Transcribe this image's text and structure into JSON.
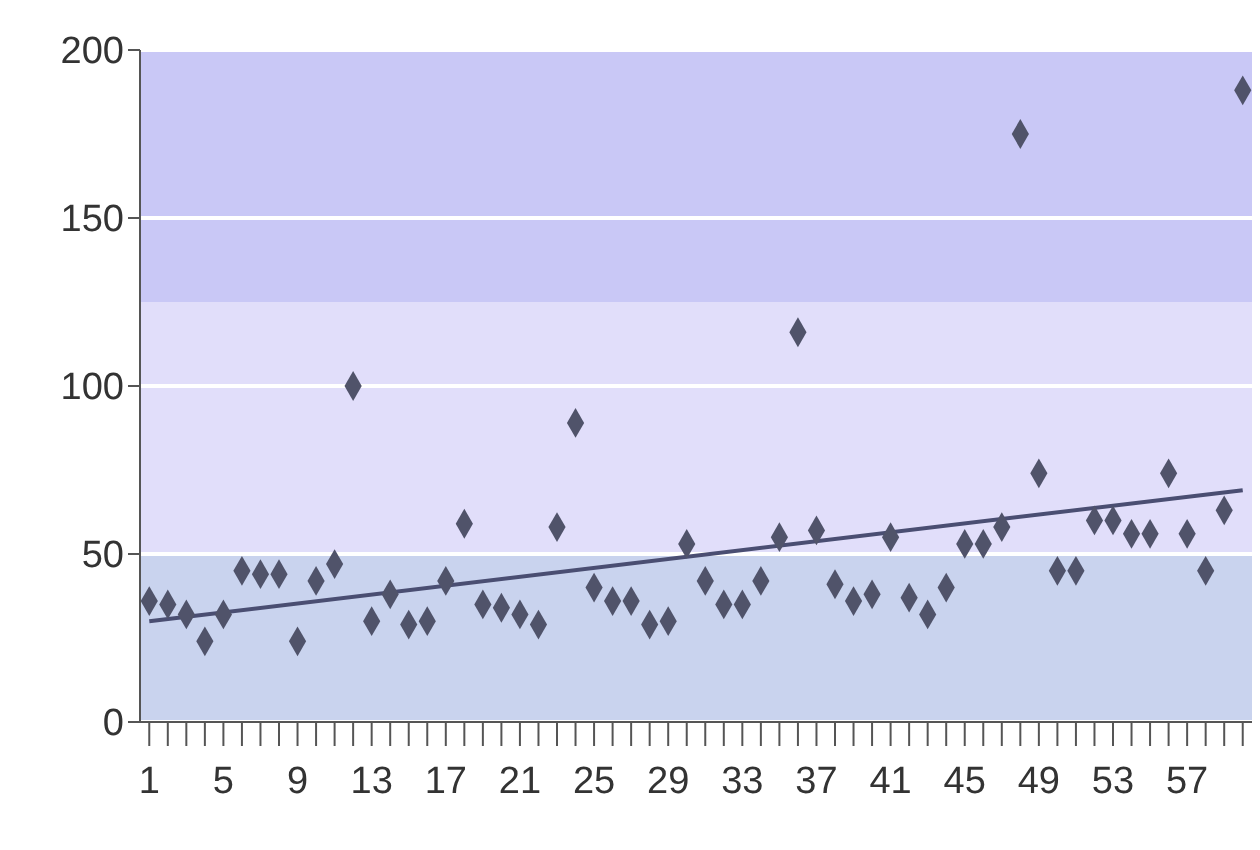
{
  "chart_data": {
    "type": "scatter",
    "x": [
      1,
      2,
      3,
      4,
      5,
      6,
      7,
      8,
      9,
      10,
      11,
      12,
      13,
      14,
      15,
      16,
      17,
      18,
      19,
      20,
      21,
      22,
      23,
      24,
      25,
      26,
      27,
      28,
      29,
      30,
      31,
      32,
      33,
      34,
      35,
      36,
      37,
      38,
      39,
      40,
      41,
      42,
      43,
      44,
      45,
      46,
      47,
      48,
      49,
      50,
      51,
      52,
      53,
      54,
      55,
      56,
      57,
      58,
      59,
      60
    ],
    "series": [
      {
        "color": "#50536a",
        "marker": "diamond",
        "values": [
          36,
          35,
          32,
          24,
          32,
          45,
          44,
          44,
          24,
          42,
          47,
          100,
          30,
          38,
          29,
          30,
          42,
          59,
          35,
          34,
          32,
          29,
          58,
          89,
          40,
          36,
          36,
          29,
          30,
          53,
          42,
          35,
          35,
          42,
          55,
          116,
          57,
          41,
          36,
          38,
          55,
          37,
          32,
          40,
          53,
          53,
          58,
          175,
          74,
          45,
          45,
          60,
          60,
          56,
          56,
          74,
          56,
          45,
          63,
          188
        ]
      },
      {
        "type": "line",
        "color": "#4a4e72",
        "marker": "none",
        "x": [
          1,
          60
        ],
        "values": [
          30,
          69
        ]
      }
    ],
    "xlim": [
      0.5,
      60.5
    ],
    "xticks": [
      1,
      {
        "value": 2,
        "label": null
      },
      {
        "value": 3,
        "label": null
      },
      {
        "value": 4,
        "label": null
      },
      5,
      {
        "value": 6,
        "label": null
      },
      {
        "value": 7,
        "label": null
      },
      {
        "value": 8,
        "label": null
      },
      9,
      {
        "value": 10,
        "label": null
      },
      {
        "value": 11,
        "label": null
      },
      {
        "value": 12,
        "label": null
      },
      13,
      {
        "value": 14,
        "label": null
      },
      {
        "value": 15,
        "label": null
      },
      {
        "value": 16,
        "label": null
      },
      17,
      {
        "value": 18,
        "label": null
      },
      {
        "value": 19,
        "label": null
      },
      {
        "value": 20,
        "label": null
      },
      21,
      {
        "value": 22,
        "label": null
      },
      {
        "value": 23,
        "label": null
      },
      {
        "value": 24,
        "label": null
      },
      25,
      {
        "value": 26,
        "label": null
      },
      {
        "value": 27,
        "label": null
      },
      {
        "value": 28,
        "label": null
      },
      29,
      {
        "value": 30,
        "label": null
      },
      {
        "value": 31,
        "label": null
      },
      {
        "value": 32,
        "label": null
      },
      33,
      {
        "value": 34,
        "label": null
      },
      {
        "value": 35,
        "label": null
      },
      {
        "value": 36,
        "label": null
      },
      37,
      {
        "value": 38,
        "label": null
      },
      {
        "value": 39,
        "label": null
      },
      {
        "value": 40,
        "label": null
      },
      41,
      {
        "value": 42,
        "label": null
      },
      {
        "value": 43,
        "label": null
      },
      {
        "value": 44,
        "label": null
      },
      45,
      {
        "value": 46,
        "label": null
      },
      {
        "value": 47,
        "label": null
      },
      {
        "value": 48,
        "label": null
      },
      49,
      {
        "value": 50,
        "label": null
      },
      {
        "value": 51,
        "label": null
      },
      {
        "value": 52,
        "label": null
      },
      53,
      {
        "value": 54,
        "label": null
      },
      {
        "value": 55,
        "label": null
      },
      {
        "value": 56,
        "label": null
      },
      57,
      {
        "value": 58,
        "label": null
      },
      {
        "value": 59,
        "label": null
      },
      {
        "value": 60,
        "label": null
      }
    ],
    "ylim": [
      0,
      200
    ],
    "yticks": [
      0,
      50,
      100,
      150,
      200
    ],
    "bands": [
      {
        "axis": "y",
        "from": 0,
        "to": 50,
        "color": "#c9d3ee"
      },
      {
        "axis": "y",
        "from": 50,
        "to": 125,
        "color": "#e1defa"
      },
      {
        "axis": "y",
        "from": 125,
        "to": 200,
        "color": "#c9c8f6"
      }
    ],
    "grid": "y"
  }
}
